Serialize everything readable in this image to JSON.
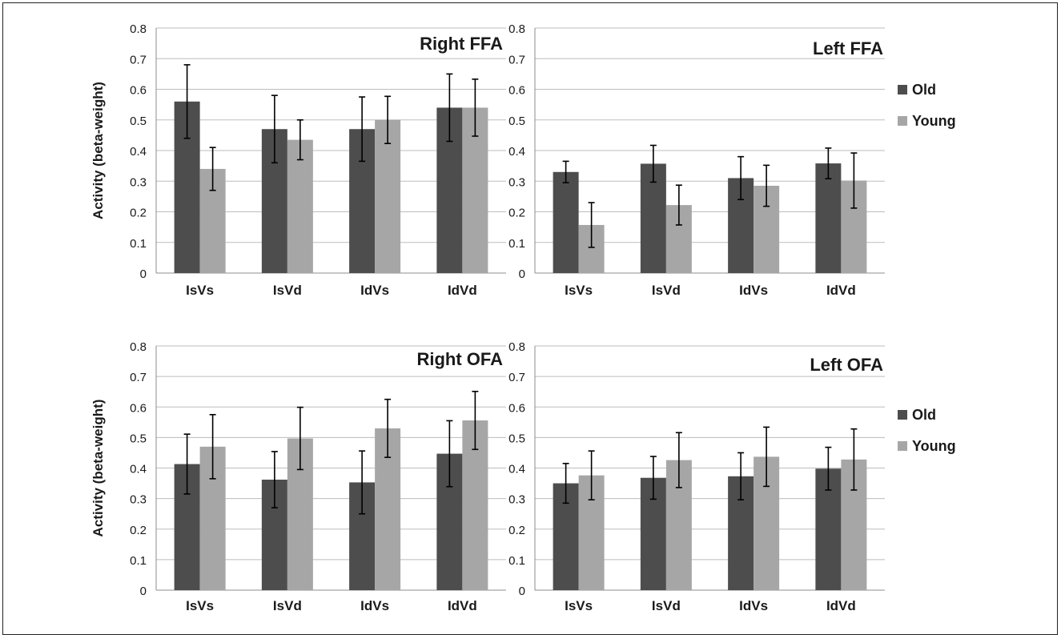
{
  "colors": {
    "old": "#4d4d4d",
    "young": "#a6a6a6",
    "grid": "#bdbdbd",
    "axis": "#8c8c8c",
    "text": "#1a1a1a"
  },
  "legend": {
    "old": "Old",
    "young": "Young"
  },
  "chart_data": [
    {
      "type": "bar",
      "title": "Right FFA",
      "ylabel": "Activity (beta-weight)",
      "ylim": [
        0,
        0.8
      ],
      "yticks": [
        "0",
        "0.1",
        "0.2",
        "0.3",
        "0.4",
        "0.5",
        "0.6",
        "0.7",
        "0.8"
      ],
      "categories": [
        "IsVs",
        "IsVd",
        "IdVs",
        "IdVd"
      ],
      "series": [
        {
          "name": "Old",
          "values": [
            0.56,
            0.47,
            0.47,
            0.54
          ],
          "errors": [
            0.12,
            0.11,
            0.105,
            0.11
          ]
        },
        {
          "name": "Young",
          "values": [
            0.34,
            0.435,
            0.5,
            0.54
          ],
          "errors": [
            0.07,
            0.065,
            0.077,
            0.093
          ]
        }
      ],
      "grid": true
    },
    {
      "type": "bar",
      "title": "Left FFA",
      "ylabel": "",
      "ylim": [
        0,
        0.8
      ],
      "yticks": [
        "0",
        "0.1",
        "0.2",
        "0.3",
        "0.4",
        "0.5",
        "0.6",
        "0.7",
        "0.8"
      ],
      "categories": [
        "IsVs",
        "IsVd",
        "IdVs",
        "IdVd"
      ],
      "series": [
        {
          "name": "Old",
          "values": [
            0.33,
            0.357,
            0.31,
            0.358
          ],
          "errors": [
            0.035,
            0.06,
            0.07,
            0.05
          ]
        },
        {
          "name": "Young",
          "values": [
            0.157,
            0.222,
            0.285,
            0.302
          ],
          "errors": [
            0.073,
            0.065,
            0.067,
            0.09
          ]
        }
      ],
      "grid": true,
      "legend": "right"
    },
    {
      "type": "bar",
      "title": "Right OFA",
      "ylabel": "Activity (beta-weight)",
      "ylim": [
        0,
        0.8
      ],
      "yticks": [
        "0",
        "0.1",
        "0.2",
        "0.3",
        "0.4",
        "0.5",
        "0.6",
        "0.7",
        "0.8"
      ],
      "categories": [
        "IsVs",
        "IsVd",
        "IdVs",
        "IdVd"
      ],
      "series": [
        {
          "name": "Old",
          "values": [
            0.413,
            0.362,
            0.353,
            0.447
          ],
          "errors": [
            0.098,
            0.092,
            0.103,
            0.108
          ]
        },
        {
          "name": "Young",
          "values": [
            0.47,
            0.497,
            0.53,
            0.556
          ],
          "errors": [
            0.105,
            0.102,
            0.095,
            0.095
          ]
        }
      ],
      "grid": true
    },
    {
      "type": "bar",
      "title": "Left OFA",
      "ylabel": "",
      "ylim": [
        0,
        0.8
      ],
      "yticks": [
        "0",
        "0.1",
        "0.2",
        "0.3",
        "0.4",
        "0.5",
        "0.6",
        "0.7",
        "0.8"
      ],
      "categories": [
        "IsVs",
        "IsVd",
        "IdVs",
        "IdVd"
      ],
      "series": [
        {
          "name": "Old",
          "values": [
            0.35,
            0.368,
            0.373,
            0.398
          ],
          "errors": [
            0.065,
            0.07,
            0.077,
            0.07
          ]
        },
        {
          "name": "Young",
          "values": [
            0.376,
            0.426,
            0.437,
            0.428
          ],
          "errors": [
            0.08,
            0.09,
            0.097,
            0.1
          ]
        }
      ],
      "grid": true,
      "legend": "right"
    }
  ]
}
